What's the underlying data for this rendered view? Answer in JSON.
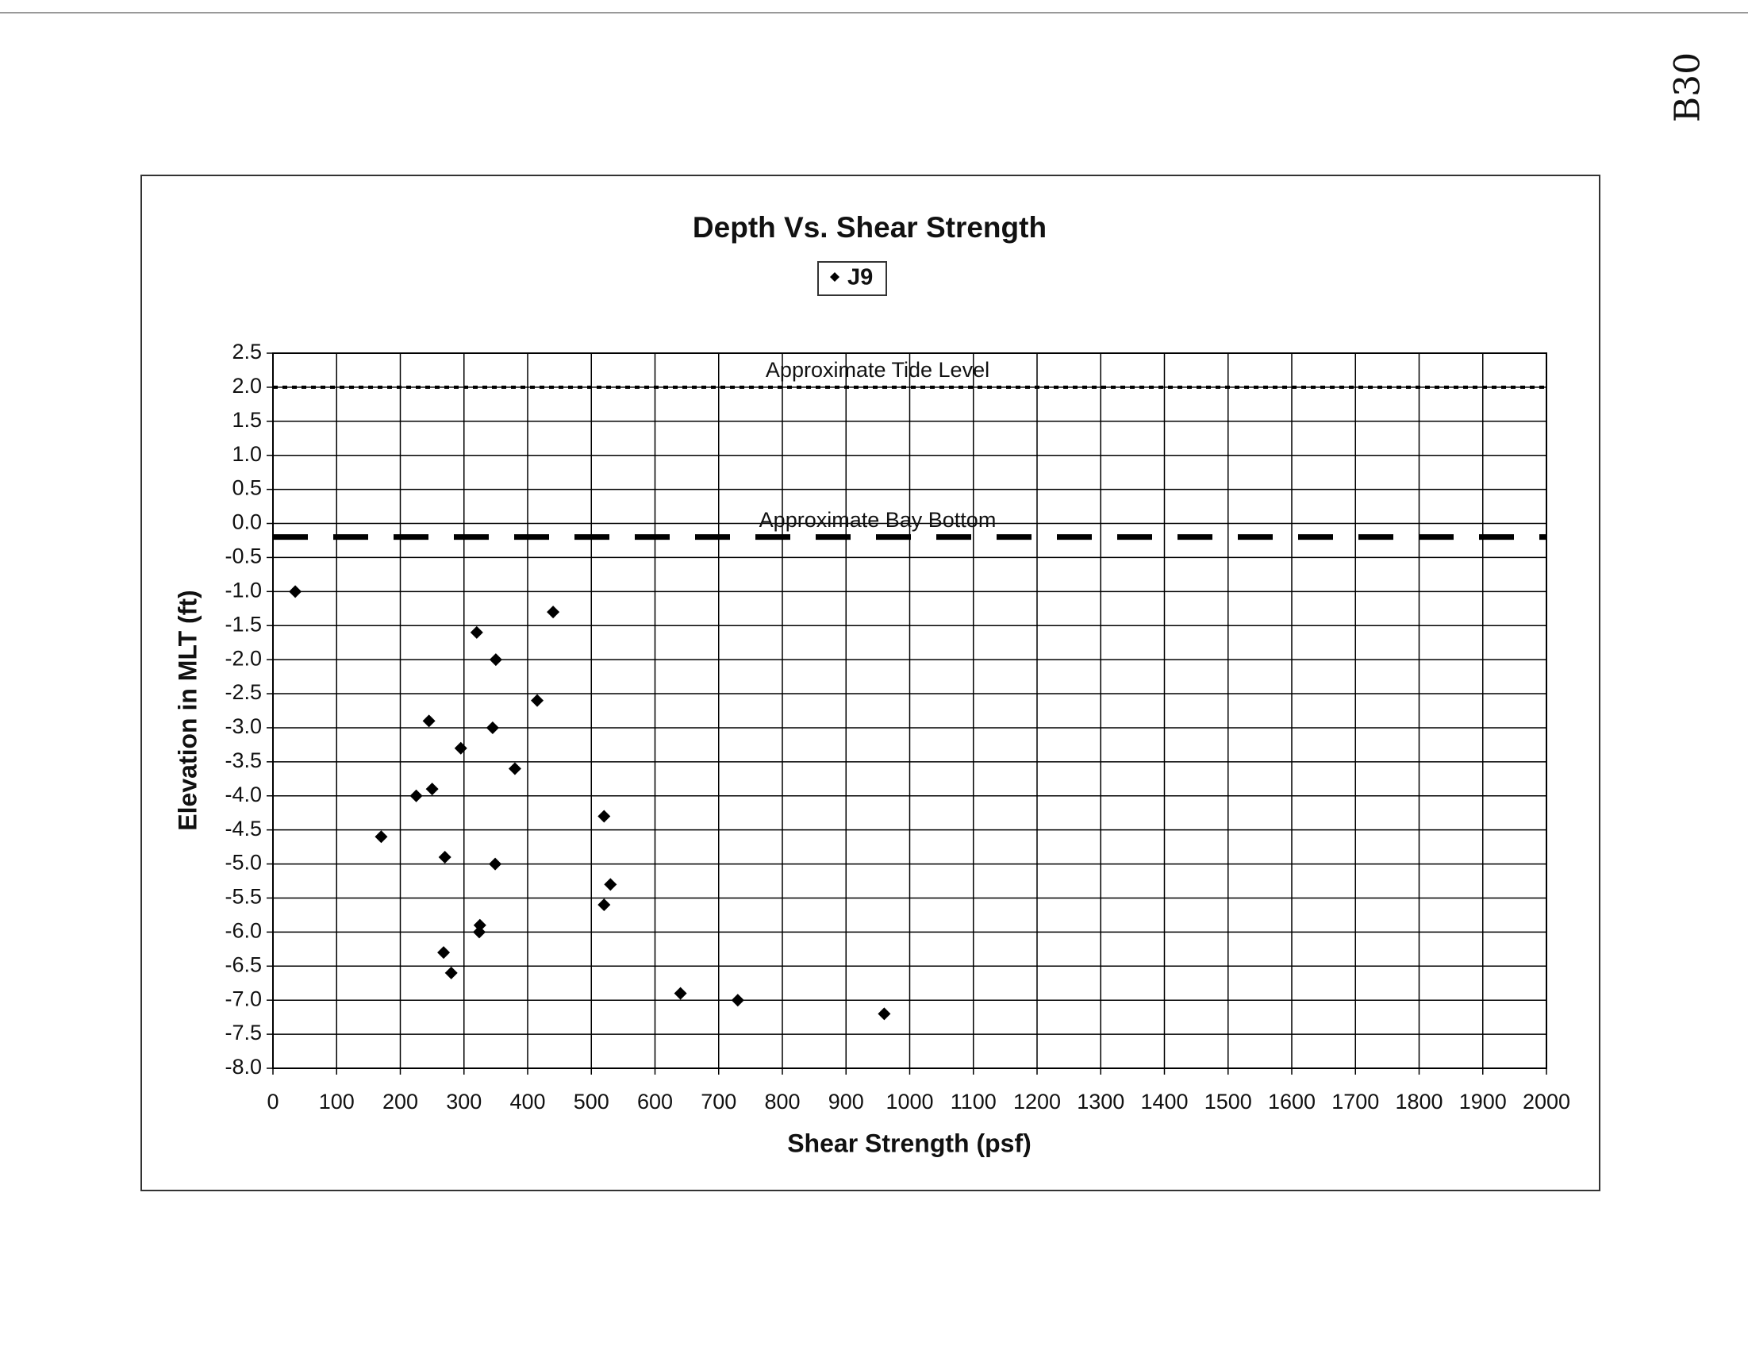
{
  "page_mark": "B30",
  "chart_data": {
    "type": "scatter",
    "title": "Depth Vs. Shear Strength",
    "x_label": "Shear Strength (psf)",
    "y_label": "Elevation in MLT (ft)",
    "series": [
      {
        "name": "J9",
        "color": "#000000",
        "x": [
          35,
          170,
          245,
          225,
          250,
          270,
          268,
          280,
          295,
          320,
          325,
          324,
          345,
          350,
          349,
          380,
          415,
          440,
          520,
          520,
          530,
          640,
          730,
          960
        ],
        "values": [
          -1.0,
          -4.6,
          -2.9,
          -4.0,
          -3.9,
          -4.9,
          -6.3,
          -6.6,
          -3.3,
          -1.6,
          -5.9,
          -6.0,
          -3.0,
          -2.0,
          -5.0,
          -3.6,
          -2.6,
          -1.3,
          -4.3,
          -5.6,
          -5.3,
          -6.9,
          -7.0,
          -7.2
        ]
      }
    ],
    "reference_lines": [
      {
        "label": "Approximate Tide Level",
        "value": 2.0,
        "style": "dotted"
      },
      {
        "label": "Approximate Bay Bottom",
        "value": -0.2,
        "style": "dashed"
      }
    ],
    "xlim": [
      0,
      2000
    ],
    "xticks": [
      0,
      100,
      200,
      300,
      400,
      500,
      600,
      700,
      800,
      900,
      1000,
      1100,
      1200,
      1300,
      1400,
      1500,
      1600,
      1700,
      1800,
      1900,
      2000
    ],
    "ylim": [
      -8.0,
      2.5
    ],
    "yticks": [
      2.5,
      {
        "value": 2,
        "label": "2.0"
      },
      1.5,
      {
        "value": 1,
        "label": "1.0"
      },
      0.5,
      {
        "value": 0,
        "label": "0.0"
      },
      -0.5,
      {
        "value": -1,
        "label": "-1.0"
      },
      -1.5,
      {
        "value": -2,
        "label": "-2.0"
      },
      -2.5,
      {
        "value": -3,
        "label": "-3.0"
      },
      -3.5,
      {
        "value": -4,
        "label": "-4.0"
      },
      -4.5,
      {
        "value": -5,
        "label": "-5.0"
      },
      -5.5,
      {
        "value": -6,
        "label": "-6.0"
      },
      -6.5,
      {
        "value": -7,
        "label": "-7.0"
      },
      -7.5,
      {
        "value": -8,
        "label": "-8.0"
      }
    ],
    "grid": true,
    "legend": "top"
  }
}
